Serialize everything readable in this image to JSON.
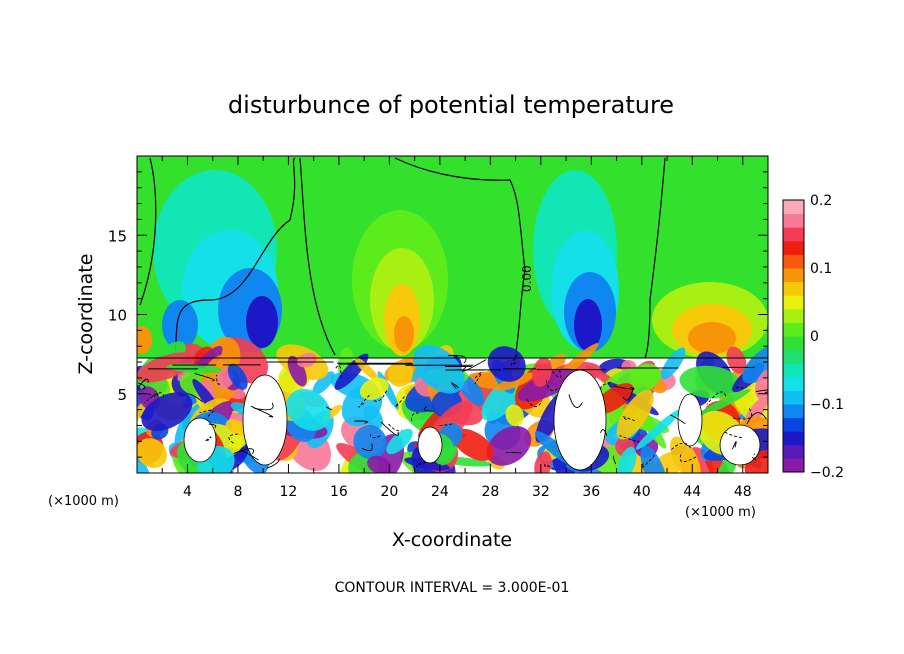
{
  "chart_data": {
    "type": "heatmap",
    "title": "disturbunce of potential temperature",
    "xlabel": "X-coordinate",
    "ylabel": "Z-coordinate",
    "x_unit": "(×1000 m)",
    "x_ticks": [
      "4",
      "8",
      "12",
      "16",
      "20",
      "24",
      "28",
      "32",
      "36",
      "40",
      "44",
      "48"
    ],
    "y_ticks": [
      "5",
      "10",
      "15"
    ],
    "xlim": [
      0,
      50
    ],
    "ylim": [
      0,
      20
    ],
    "colorbar": {
      "range": [
        -0.2,
        0.2
      ],
      "tick_labels": [
        "0.2",
        "0.1",
        "0",
        "−0.1",
        "−0.2"
      ],
      "colors": [
        "#8a1ba8",
        "#5a1ab8",
        "#1c18c8",
        "#0a44e0",
        "#0f86f0",
        "#12bff5",
        "#14e0e8",
        "#12e6b4",
        "#20e070",
        "#2fe035",
        "#5cec1c",
        "#a8f014",
        "#e8f00e",
        "#f8c80a",
        "#f89408",
        "#f85810",
        "#f01e10",
        "#f43c54",
        "#f87898",
        "#fcaab8"
      ]
    },
    "contour_label": "0.00",
    "annotation": "CONTOUR INTERVAL = 3.000E-01"
  }
}
